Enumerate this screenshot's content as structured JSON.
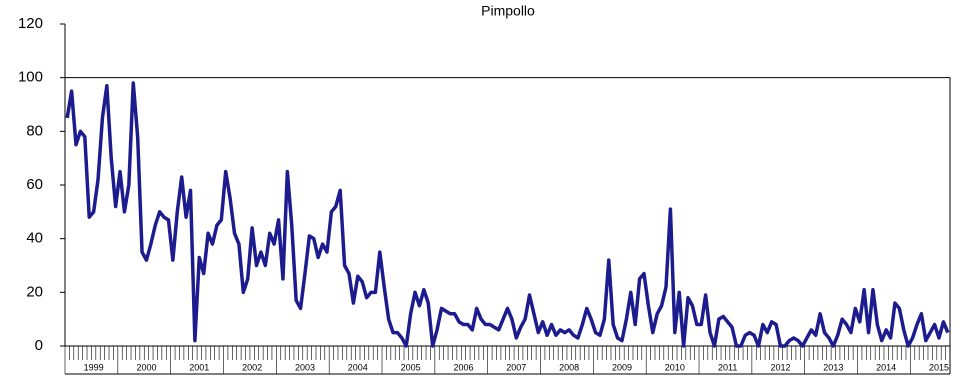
{
  "chart_data": {
    "type": "line",
    "title": "Pimpollo",
    "categories": [
      null,
      null,
      null,
      null,
      null,
      null,
      "1999",
      null,
      null,
      null,
      null,
      null,
      null,
      null,
      null,
      null,
      null,
      null,
      "2000",
      null,
      null,
      null,
      null,
      null,
      null,
      null,
      null,
      null,
      null,
      null,
      "2001",
      null,
      null,
      null,
      null,
      null,
      null,
      null,
      null,
      null,
      null,
      null,
      "2002",
      null,
      null,
      null,
      null,
      null,
      null,
      null,
      null,
      null,
      null,
      null,
      "2003",
      null,
      null,
      null,
      null,
      null,
      null,
      null,
      null,
      null,
      null,
      null,
      "2004",
      null,
      null,
      null,
      null,
      null,
      null,
      null,
      null,
      null,
      null,
      null,
      "2005",
      null,
      null,
      null,
      null,
      null,
      null,
      null,
      null,
      null,
      null,
      null,
      "2006",
      null,
      null,
      null,
      null,
      null,
      null,
      null,
      null,
      null,
      null,
      null,
      "2007",
      null,
      null,
      null,
      null,
      null,
      null,
      null,
      null,
      null,
      null,
      null,
      "2008",
      null,
      null,
      null,
      null,
      null,
      null,
      null,
      null,
      null,
      null,
      null,
      "2009",
      null,
      null,
      null,
      null,
      null,
      null,
      null,
      null,
      null,
      null,
      null,
      "2010",
      null,
      null,
      null,
      null,
      null,
      null,
      null,
      null,
      null,
      null,
      null,
      "2011",
      null,
      null,
      null,
      null,
      null,
      null,
      null,
      null,
      null,
      null,
      null,
      "2012",
      null,
      null,
      null,
      null,
      null,
      null,
      null,
      null,
      null,
      null,
      null,
      "2013",
      null,
      null,
      null,
      null,
      null,
      null,
      null,
      null,
      null,
      null,
      null,
      "2014",
      null,
      null,
      null,
      null,
      null,
      null,
      null,
      null,
      null,
      null,
      null,
      "2015",
      null,
      null
    ],
    "series": [
      {
        "name": "Pimpollo",
        "color": "#1c1c8f",
        "values": [
          85,
          95,
          75,
          80,
          78,
          48,
          50,
          62,
          85,
          97,
          70,
          52,
          65,
          50,
          60,
          98,
          78,
          35,
          32,
          38,
          45,
          50,
          48,
          47,
          32,
          50,
          63,
          48,
          58,
          2,
          33,
          27,
          42,
          38,
          45,
          47,
          65,
          55,
          42,
          38,
          20,
          25,
          44,
          30,
          35,
          30,
          42,
          38,
          47,
          25,
          65,
          45,
          17,
          14,
          27,
          41,
          40,
          33,
          38,
          35,
          50,
          52,
          58,
          30,
          27,
          16,
          26,
          24,
          18,
          20,
          20,
          35,
          22,
          10,
          5,
          5,
          3,
          0,
          12,
          20,
          15,
          21,
          16,
          0,
          6,
          14,
          13,
          12,
          12,
          9,
          8,
          8,
          6,
          14,
          10,
          8,
          8,
          7,
          6,
          10,
          14,
          10,
          3,
          7,
          10,
          19,
          12,
          5,
          9,
          4,
          8,
          4,
          6,
          5,
          6,
          4,
          3,
          8,
          14,
          10,
          5,
          4,
          10,
          32,
          8,
          3,
          2,
          10,
          20,
          8,
          25,
          27,
          15,
          5,
          12,
          15,
          22,
          51,
          5,
          20,
          0,
          18,
          15,
          8,
          8,
          19,
          5,
          0,
          10,
          11,
          9,
          7,
          0,
          0,
          4,
          5,
          4,
          0,
          8,
          5,
          9,
          8,
          0,
          0,
          2,
          3,
          2,
          0,
          3,
          6,
          4,
          12,
          5,
          3,
          0,
          4,
          10,
          8,
          5,
          14,
          9,
          21,
          5,
          21,
          8,
          2,
          6,
          3,
          16,
          14,
          6,
          0,
          3,
          8,
          12,
          2,
          5,
          8,
          3,
          9,
          5
        ]
      }
    ],
    "ylim": [
      0,
      120
    ],
    "yticks": [
      0,
      20,
      40,
      60,
      80,
      100,
      120
    ],
    "grid": false
  }
}
